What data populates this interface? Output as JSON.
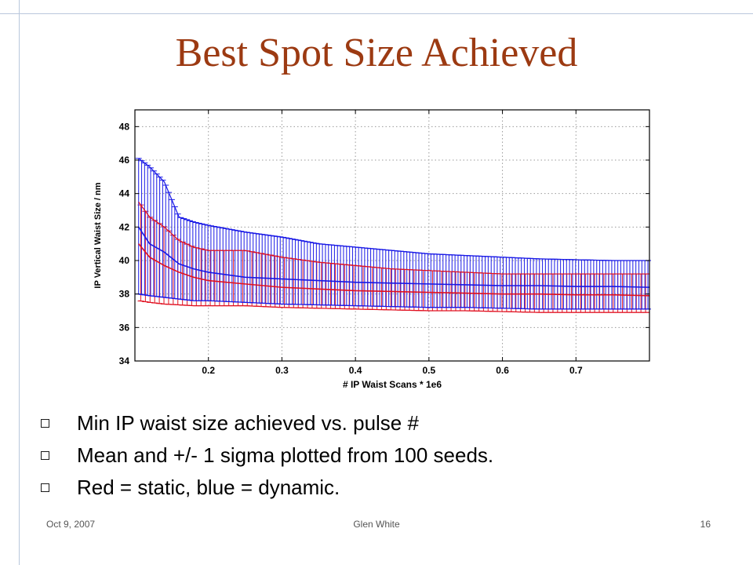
{
  "slide": {
    "title": "Best Spot Size Achieved",
    "bullets": [
      "Min IP waist size achieved vs. pulse #",
      "Mean and +/- 1 sigma plotted from 100 seeds.",
      "Red = static, blue = dynamic."
    ],
    "footer": {
      "date": "Oct 9, 2007",
      "author": "Glen White",
      "page": "16"
    }
  },
  "colors": {
    "title": "#9c3a12",
    "static": "#e01020",
    "dynamic": "#1818e6",
    "frame_rule": "#b9c7dc"
  },
  "chart_data": {
    "type": "line",
    "title": "",
    "xlabel": "# IP Waist Scans * 1e6",
    "ylabel": "IP Vertical Waist Size / nm",
    "xlim": [
      0.1,
      0.8
    ],
    "ylim": [
      34,
      49
    ],
    "xticks": [
      0.2,
      0.3,
      0.4,
      0.5,
      0.6,
      0.7
    ],
    "xtick_labels": [
      "0.2",
      "0.3",
      "0.4",
      "0.5",
      "0.6",
      "0.7"
    ],
    "yticks": [
      34,
      36,
      38,
      40,
      42,
      44,
      46,
      48
    ],
    "ytick_labels": [
      "34",
      "36",
      "38",
      "40",
      "42",
      "44",
      "46",
      "48"
    ],
    "grid": true,
    "error_bars": "mean +/- 1 sigma",
    "x": [
      0.105,
      0.12,
      0.14,
      0.16,
      0.18,
      0.2,
      0.25,
      0.3,
      0.35,
      0.4,
      0.45,
      0.5,
      0.55,
      0.6,
      0.65,
      0.7,
      0.75,
      0.8
    ],
    "series": [
      {
        "name": "dynamic",
        "mean": [
          42.0,
          41.0,
          40.5,
          39.8,
          39.5,
          39.3,
          39.0,
          38.9,
          38.8,
          38.7,
          38.65,
          38.6,
          38.55,
          38.5,
          38.5,
          38.45,
          38.45,
          38.4
        ],
        "upper": [
          46.1,
          45.6,
          44.7,
          42.6,
          42.3,
          42.1,
          41.7,
          41.4,
          41.0,
          40.8,
          40.6,
          40.4,
          40.3,
          40.2,
          40.1,
          40.05,
          40.0,
          40.0
        ],
        "lower": [
          38.0,
          37.9,
          37.8,
          37.7,
          37.6,
          37.6,
          37.5,
          37.4,
          37.35,
          37.3,
          37.25,
          37.2,
          37.2,
          37.15,
          37.1,
          37.1,
          37.1,
          37.1
        ]
      },
      {
        "name": "static",
        "mean": [
          41.0,
          40.2,
          39.7,
          39.3,
          39.0,
          38.8,
          38.6,
          38.4,
          38.3,
          38.2,
          38.15,
          38.1,
          38.05,
          38.0,
          38.0,
          37.95,
          37.95,
          37.9
        ],
        "upper": [
          43.5,
          42.6,
          42.0,
          41.2,
          40.8,
          40.6,
          40.6,
          40.2,
          39.9,
          39.7,
          39.5,
          39.4,
          39.3,
          39.2,
          39.2,
          39.2,
          39.2,
          39.2
        ],
        "lower": [
          37.6,
          37.5,
          37.4,
          37.35,
          37.3,
          37.3,
          37.3,
          37.2,
          37.15,
          37.1,
          37.05,
          37.0,
          37.0,
          36.95,
          36.9,
          36.9,
          36.9,
          36.9
        ]
      }
    ]
  }
}
